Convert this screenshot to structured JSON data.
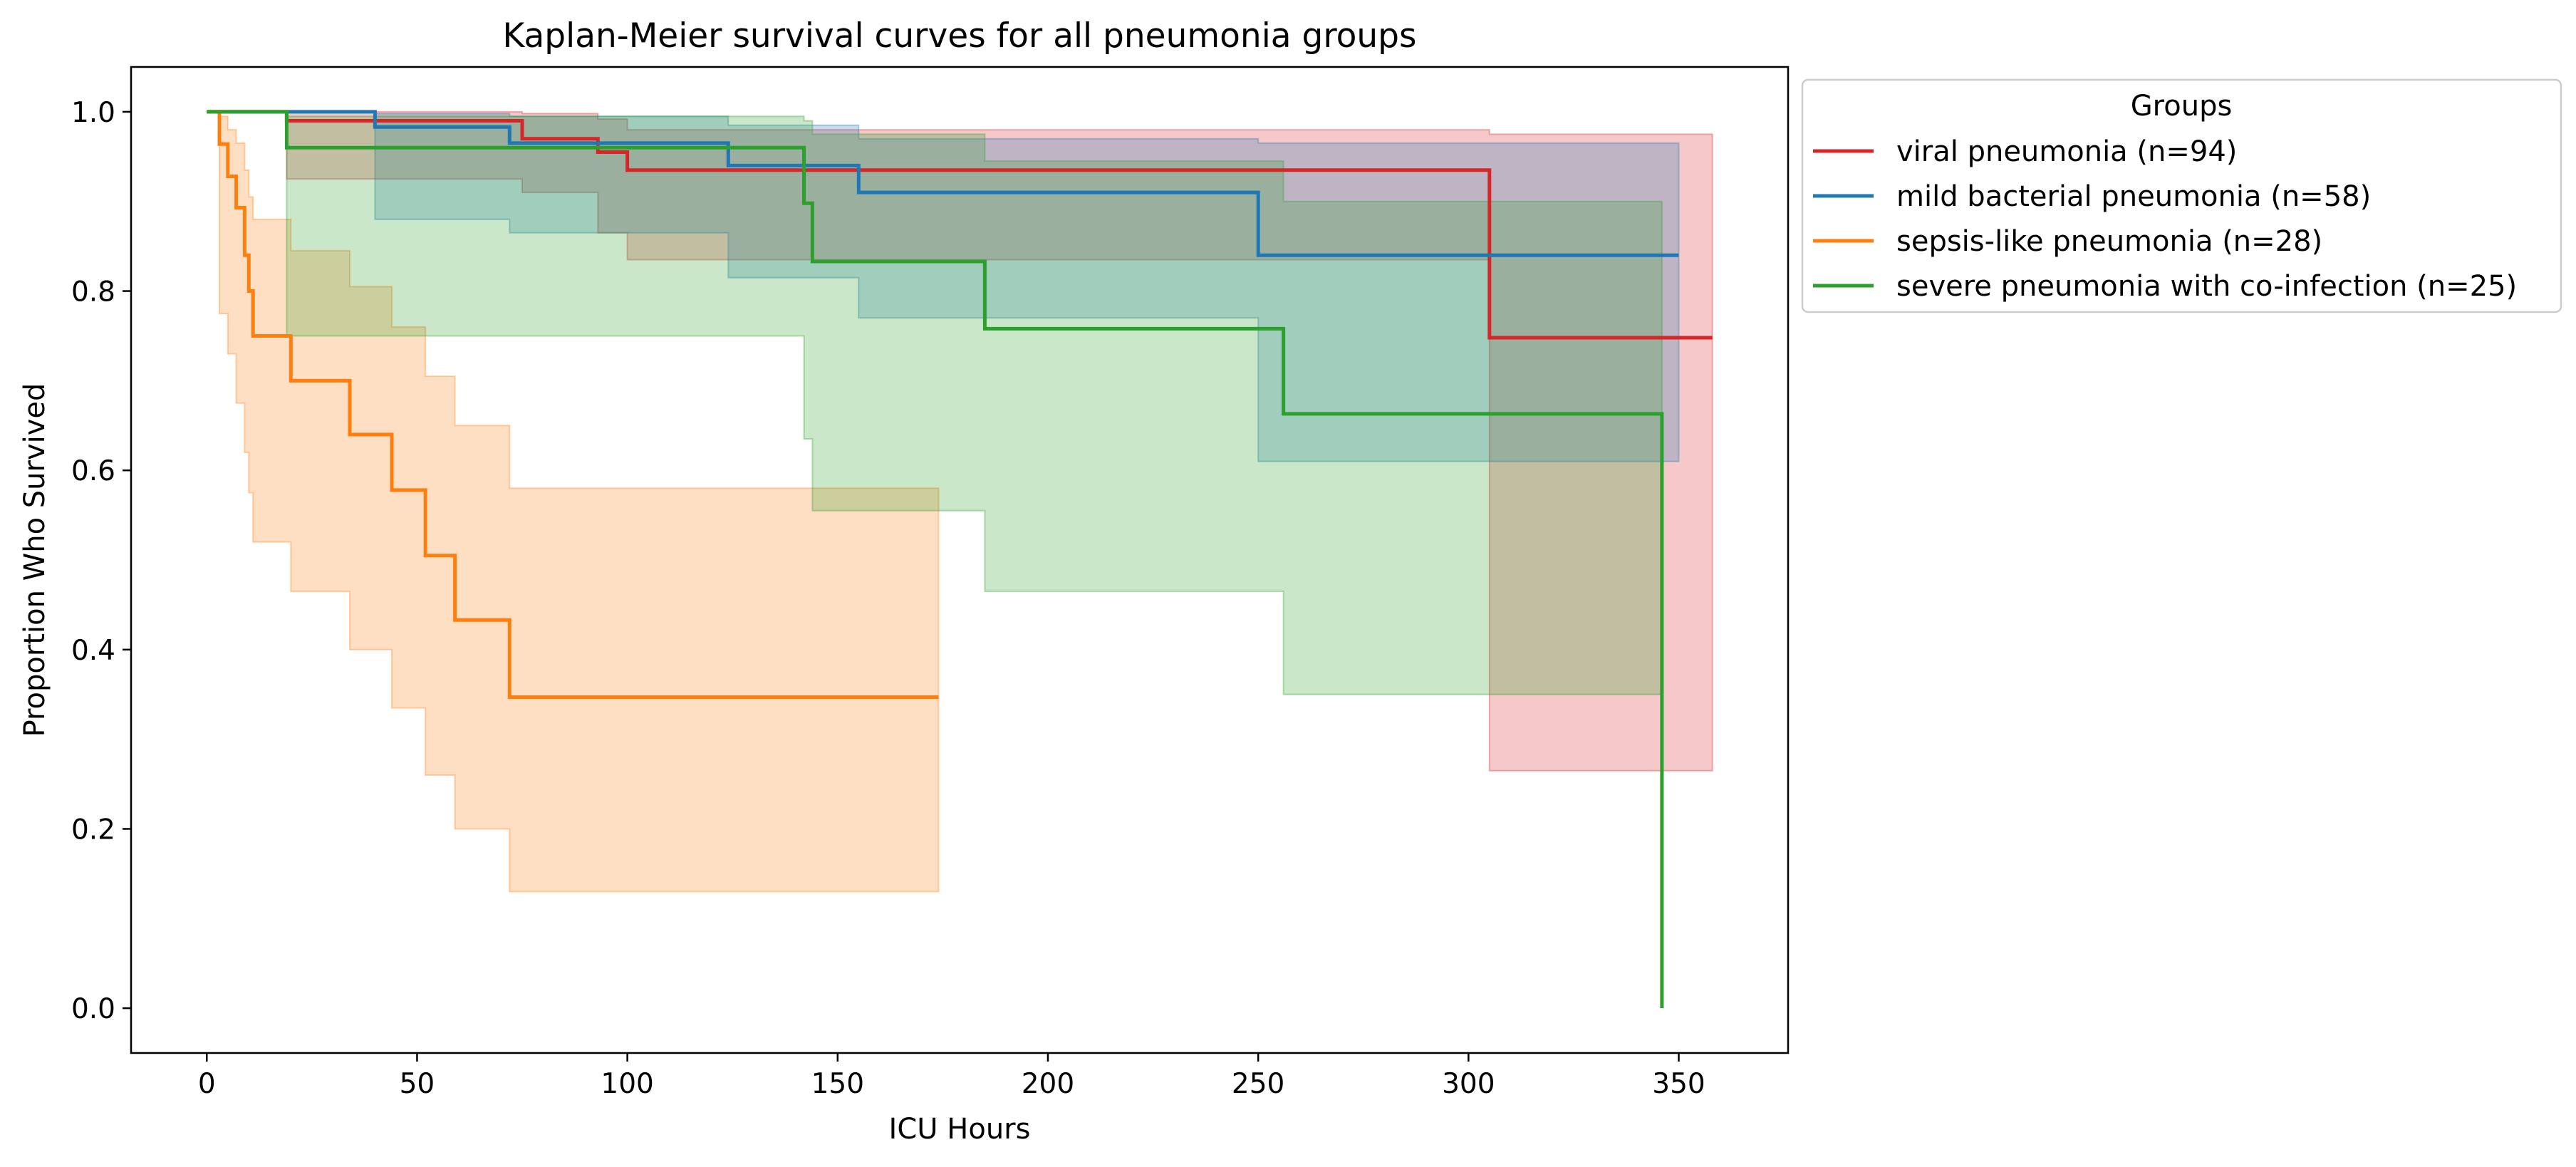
{
  "chart_data": {
    "type": "line",
    "subtype": "step",
    "title": "Kaplan-Meier survival curves for all pneumonia groups",
    "xlabel": "ICU Hours",
    "ylabel": "Proportion Who Survived",
    "xlim": [
      -18,
      376
    ],
    "ylim": [
      -0.05,
      1.05
    ],
    "xticks": [
      0,
      50,
      100,
      150,
      200,
      250,
      300,
      350
    ],
    "yticks": [
      0.0,
      0.2,
      0.4,
      0.6,
      0.8,
      1.0
    ],
    "xtick_labels": [
      "0",
      "50",
      "100",
      "150",
      "200",
      "250",
      "300",
      "350"
    ],
    "ytick_labels": [
      "0.0",
      "0.2",
      "0.4",
      "0.6",
      "0.8",
      "1.0"
    ],
    "grid": false,
    "legend": {
      "title": "Groups",
      "placement": "outside-top-right"
    },
    "series": [
      {
        "name": "viral pneumonia (n=94)",
        "color": "#d62728",
        "x": [
          0,
          19,
          75,
          93,
          100,
          305,
          358
        ],
        "y": [
          1.0,
          0.99,
          0.97,
          0.955,
          0.935,
          0.748,
          0.748
        ],
        "ci_x": [
          19,
          75,
          93,
          100,
          305,
          358
        ],
        "ci_lower": [
          0.925,
          0.91,
          0.865,
          0.835,
          0.265,
          0.265
        ],
        "ci_upper": [
          1.0,
          0.998,
          0.992,
          0.98,
          0.975,
          0.94
        ]
      },
      {
        "name": "mild bacterial pneumonia (n=58)",
        "color": "#1f77b4",
        "x": [
          0,
          40,
          72,
          124,
          155,
          250,
          350
        ],
        "y": [
          1.0,
          0.983,
          0.965,
          0.94,
          0.91,
          0.84,
          0.84
        ],
        "ci_x": [
          40,
          72,
          124,
          155,
          250,
          350
        ],
        "ci_lower": [
          0.88,
          0.865,
          0.815,
          0.77,
          0.61,
          0.61
        ],
        "ci_upper": [
          0.998,
          0.995,
          0.985,
          0.97,
          0.965,
          0.94
        ]
      },
      {
        "name": "sepsis-like pneumonia (n=28)",
        "color": "#ff7f0e",
        "x": [
          0,
          3,
          5,
          7,
          9,
          10,
          11,
          20,
          34,
          44,
          52,
          59,
          72,
          174
        ],
        "y": [
          1.0,
          0.964,
          0.928,
          0.893,
          0.84,
          0.8,
          0.75,
          0.7,
          0.64,
          0.578,
          0.505,
          0.433,
          0.347,
          0.347
        ],
        "ci_x": [
          3,
          5,
          7,
          9,
          10,
          11,
          20,
          34,
          44,
          52,
          59,
          72,
          174
        ],
        "ci_lower": [
          0.775,
          0.73,
          0.675,
          0.62,
          0.575,
          0.52,
          0.465,
          0.4,
          0.335,
          0.26,
          0.2,
          0.13,
          0.13
        ],
        "ci_upper": [
          0.995,
          0.98,
          0.965,
          0.935,
          0.905,
          0.88,
          0.845,
          0.805,
          0.76,
          0.705,
          0.65,
          0.58,
          0.58
        ]
      },
      {
        "name": "severe pneumonia with co-infection (n=25)",
        "color": "#2ca02c",
        "x": [
          0,
          19,
          142,
          144,
          185,
          256,
          346,
          346
        ],
        "y": [
          1.0,
          0.96,
          0.898,
          0.833,
          0.758,
          0.663,
          0.663,
          0.0
        ],
        "ci_x": [
          19,
          142,
          144,
          185,
          256,
          346
        ],
        "ci_lower": [
          0.75,
          0.635,
          0.555,
          0.465,
          0.35,
          0.35
        ],
        "ci_upper": [
          0.995,
          0.99,
          0.975,
          0.945,
          0.9,
          0.855
        ]
      }
    ]
  }
}
